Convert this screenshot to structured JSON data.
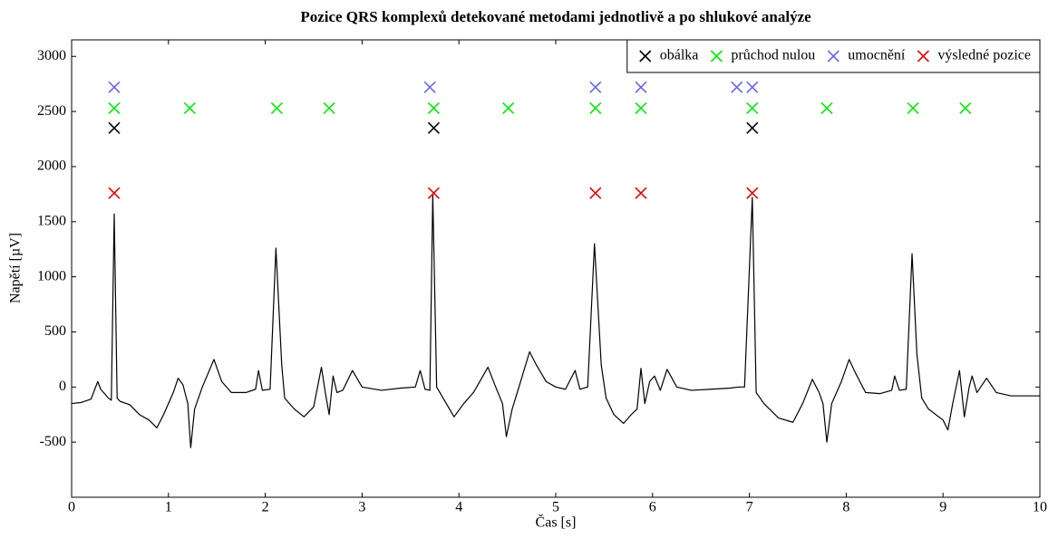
{
  "chart_data": {
    "type": "line",
    "title": "Pozice QRS komplexů detekované metodami jednotlivě a po shlukové analýze",
    "x_label": "Čas [s]",
    "y_label": "Napětí [µV]",
    "xlim": [
      0,
      10
    ],
    "xticks": [
      0,
      1,
      2,
      3,
      4,
      5,
      6,
      7,
      8,
      9,
      10
    ],
    "ylim": [
      -1000,
      3150
    ],
    "yticks": [
      -500,
      0,
      500,
      1000,
      1500,
      2000,
      2500,
      3000
    ],
    "grid": false,
    "legend": "top-right",
    "series": [
      {
        "color": "#000000",
        "x": [
          0,
          0.1,
          0.2,
          0.27,
          0.3,
          0.38,
          0.41,
          0.44,
          0.47,
          0.5,
          0.6,
          0.7,
          0.8,
          0.88,
          0.95,
          1.05,
          1.1,
          1.15,
          1.2,
          1.23,
          1.27,
          1.35,
          1.47,
          1.55,
          1.65,
          1.8,
          1.9,
          1.93,
          1.97,
          2.05,
          2.11,
          2.17,
          2.2,
          2.3,
          2.4,
          2.5,
          2.58,
          2.62,
          2.66,
          2.7,
          2.74,
          2.8,
          2.9,
          3.0,
          3.2,
          3.4,
          3.55,
          3.6,
          3.65,
          3.7,
          3.73,
          3.77,
          3.85,
          3.95,
          4.05,
          4.15,
          4.3,
          4.38,
          4.45,
          4.49,
          4.55,
          4.62,
          4.73,
          4.8,
          4.9,
          5.0,
          5.1,
          5.2,
          5.25,
          5.33,
          5.4,
          5.47,
          5.52,
          5.6,
          5.7,
          5.78,
          5.84,
          5.88,
          5.92,
          5.97,
          6.02,
          6.08,
          6.15,
          6.25,
          6.4,
          6.6,
          6.8,
          6.89,
          6.95,
          7.03,
          7.07,
          7.15,
          7.3,
          7.45,
          7.55,
          7.65,
          7.72,
          7.76,
          7.8,
          7.85,
          7.95,
          8.03,
          8.1,
          8.2,
          8.35,
          8.47,
          8.5,
          8.55,
          8.62,
          8.68,
          8.73,
          8.78,
          8.85,
          9.0,
          9.05,
          9.1,
          9.17,
          9.22,
          9.27,
          9.3,
          9.35,
          9.45,
          9.55,
          9.7,
          9.85,
          10
        ],
        "values": [
          -150,
          -140,
          -110,
          50,
          -20,
          -100,
          -120,
          1570,
          -100,
          -130,
          -160,
          -250,
          -300,
          -370,
          -250,
          -50,
          80,
          20,
          -150,
          -550,
          -200,
          0,
          250,
          50,
          -50,
          -50,
          -20,
          150,
          -30,
          -20,
          1260,
          200,
          -100,
          -200,
          -270,
          -180,
          180,
          -50,
          -250,
          100,
          -50,
          -30,
          150,
          0,
          -30,
          -10,
          0,
          150,
          -20,
          -30,
          1750,
          0,
          -120,
          -270,
          -150,
          -50,
          180,
          0,
          -150,
          -450,
          -200,
          0,
          320,
          200,
          50,
          0,
          -20,
          150,
          -20,
          0,
          1300,
          200,
          -100,
          -250,
          -330,
          -250,
          -200,
          170,
          -150,
          50,
          100,
          -30,
          160,
          0,
          -30,
          -20,
          -10,
          0,
          0,
          1720,
          -50,
          -150,
          -280,
          -320,
          -150,
          70,
          -50,
          -150,
          -500,
          -150,
          50,
          250,
          120,
          -50,
          -60,
          -30,
          100,
          -30,
          -20,
          1210,
          300,
          -100,
          -200,
          -300,
          -390,
          -150,
          150,
          -270,
          0,
          100,
          -50,
          80,
          -50,
          -80,
          -80,
          -80
        ]
      },
      {
        "name": "obálka",
        "color": "#000000",
        "marker": "x",
        "x": [
          0.44,
          3.74,
          7.03
        ],
        "values": [
          2350,
          2350,
          2350
        ]
      },
      {
        "name": "průchod nulou",
        "color": "#00ee00",
        "marker": "x",
        "x": [
          0.44,
          1.22,
          2.12,
          2.66,
          3.74,
          4.51,
          5.41,
          5.88,
          7.03,
          7.8,
          8.69,
          9.23
        ],
        "values": [
          2530,
          2530,
          2530,
          2530,
          2530,
          2530,
          2530,
          2530,
          2530,
          2530,
          2530,
          2530
        ]
      },
      {
        "name": "umocnění",
        "color": "#6666ee",
        "marker": "x",
        "x": [
          0.44,
          3.7,
          5.41,
          5.88,
          6.87,
          7.03
        ],
        "values": [
          2720,
          2720,
          2720,
          2720,
          2720,
          2720
        ]
      },
      {
        "name": "výsledné pozice",
        "color": "#ee0000",
        "marker": "x",
        "x": [
          0.44,
          3.74,
          5.41,
          5.88,
          7.03
        ],
        "values": [
          1760,
          1760,
          1760,
          1760,
          1760
        ]
      }
    ]
  }
}
